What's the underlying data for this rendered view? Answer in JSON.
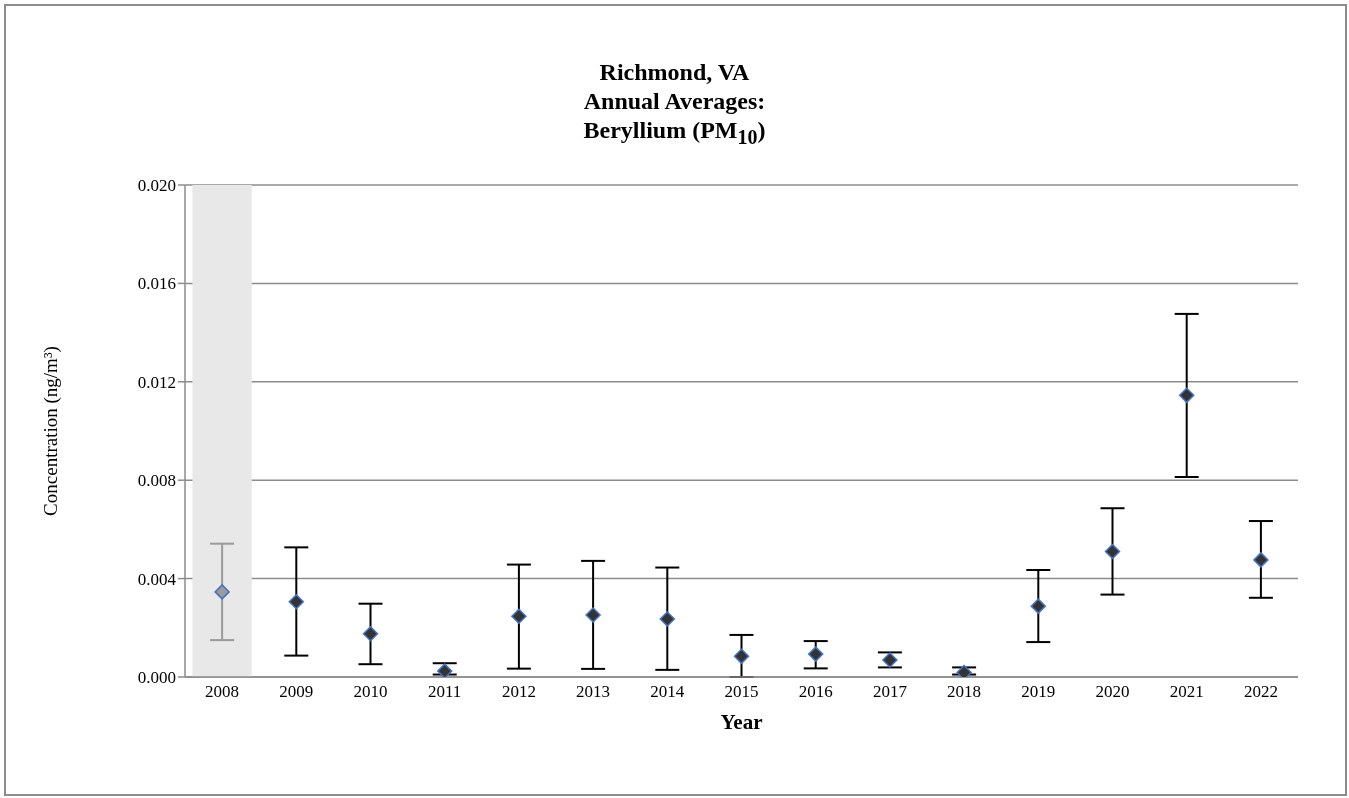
{
  "chart_data": {
    "type": "scatter",
    "title": "Richmond, VA\nAnnual Averages:\nBeryllium (PM$_{10}$)",
    "xlabel": "Year",
    "ylabel": "Concentration (ng/m³)",
    "categories": [
      "2008",
      "2009",
      "2010",
      "2011",
      "2012",
      "2013",
      "2014",
      "2015",
      "2016",
      "2017",
      "2018",
      "2019",
      "2020",
      "2021",
      "2022"
    ],
    "values": [
      0.00346,
      0.00306,
      0.00176,
      0.00024,
      0.00247,
      0.00252,
      0.00236,
      0.00084,
      0.00093,
      0.00069,
      0.00018,
      0.00288,
      0.0051,
      0.01145,
      0.00476
    ],
    "errors": [
      [
        0.0015,
        0.00542
      ],
      [
        0.00087,
        0.00527
      ],
      [
        0.00052,
        0.00298
      ],
      [
        0.0001,
        0.00056
      ],
      [
        0.00034,
        0.00457
      ],
      [
        0.00033,
        0.00472
      ],
      [
        0.00029,
        0.00445
      ],
      [
        0.0,
        0.00171
      ],
      [
        0.00035,
        0.00146
      ],
      [
        0.00039,
        0.001
      ],
      [
        0.0001,
        0.00039
      ],
      [
        0.00142,
        0.00435
      ],
      [
        0.00335,
        0.00686
      ],
      [
        0.00813,
        0.01476
      ],
      [
        0.00322,
        0.00634
      ]
    ],
    "colors": [
      "#9a9a9a",
      "#333333",
      "#333333",
      "#333333",
      "#333333",
      "#333333",
      "#333333",
      "#333333",
      "#333333",
      "#333333",
      "#333333",
      "#333333",
      "#333333",
      "#333333",
      "#333333"
    ],
    "marker": "diamond",
    "ylim": [
      0,
      0.02
    ],
    "yticks": [
      {
        "value": 0,
        "label": "0.000"
      },
      0.004,
      0.008,
      0.012,
      0.016,
      {
        "value": 0.02,
        "label": "0.020"
      }
    ],
    "grid": "y",
    "legend": false,
    "bands": [
      {
        "axis": "x",
        "from": "2008",
        "to": "2008",
        "color": "#e8e8e8"
      }
    ]
  }
}
